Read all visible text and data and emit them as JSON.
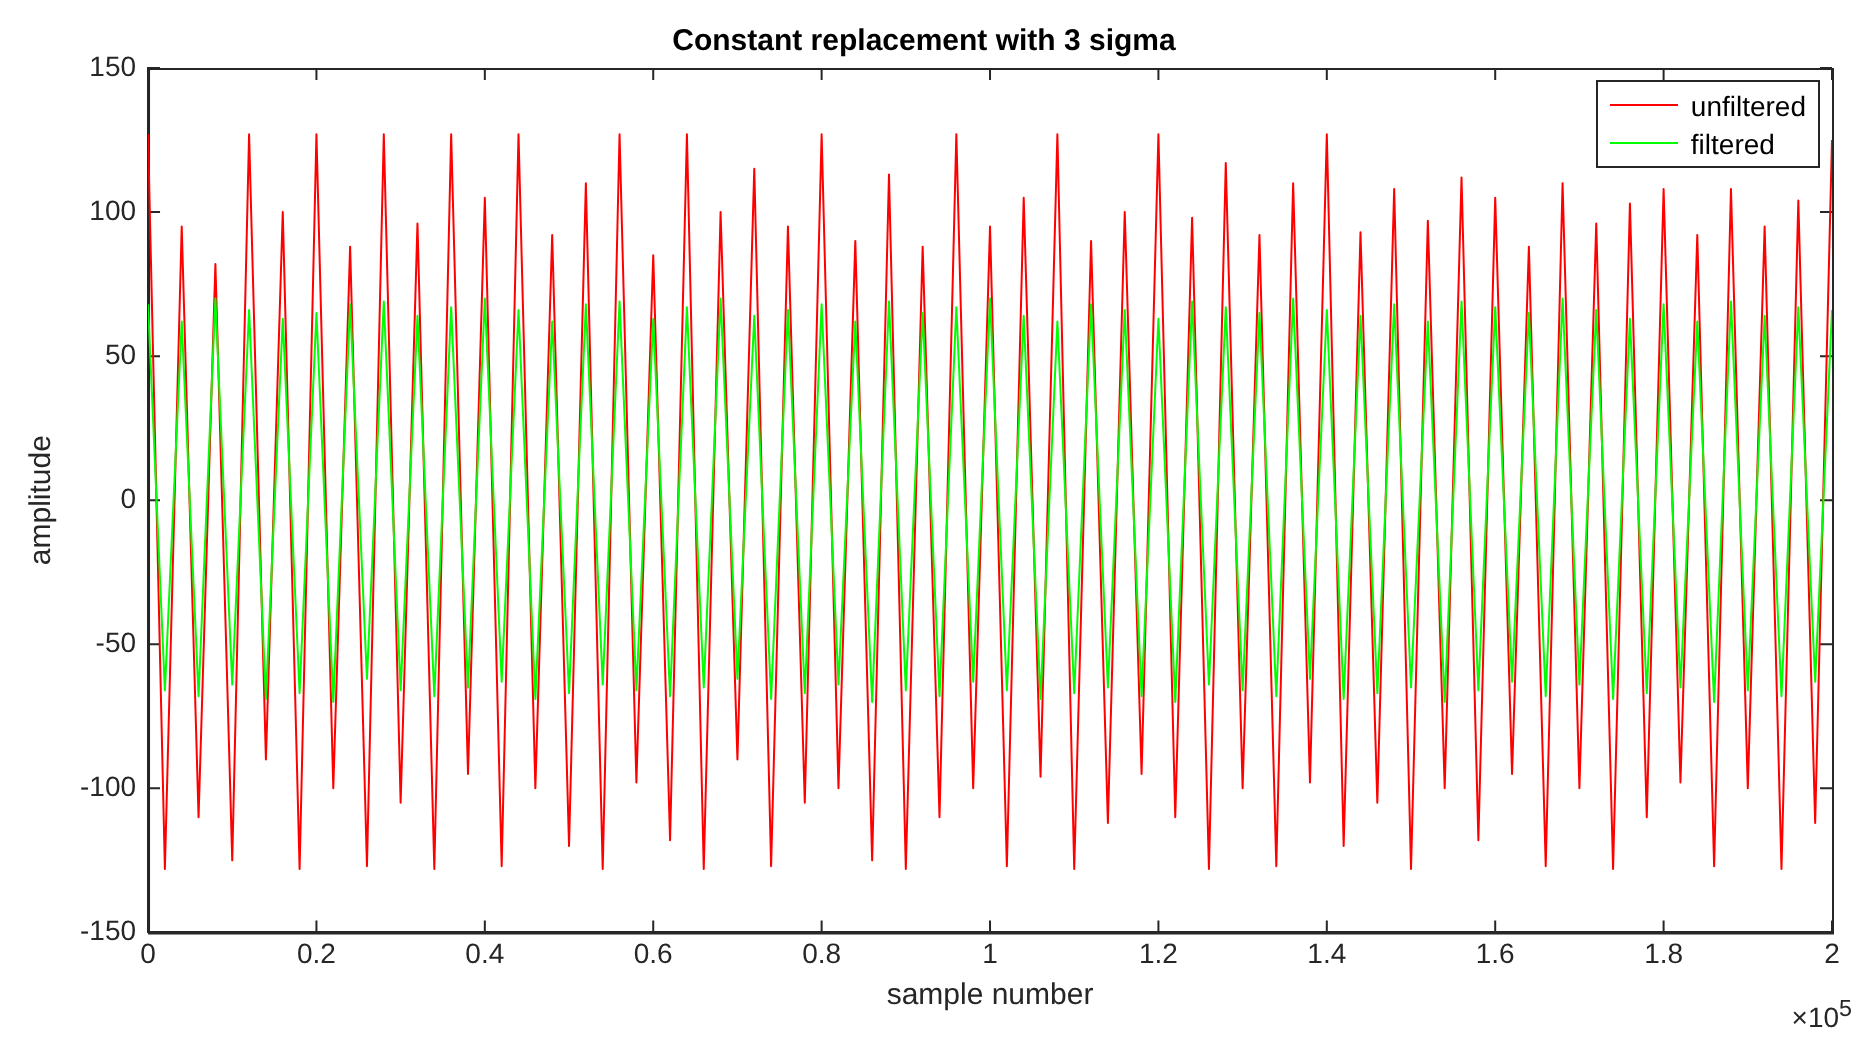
{
  "chart_data": {
    "type": "line",
    "title": "Constant replacement with 3 sigma",
    "xlabel": "sample number",
    "ylabel": "amplitude",
    "x": [
      0,
      0.02,
      0.04,
      0.06,
      0.08,
      0.1,
      0.12,
      0.14,
      0.16,
      0.18,
      0.2,
      0.22,
      0.24,
      0.26,
      0.28,
      0.3,
      0.32,
      0.34,
      0.36,
      0.38,
      0.4,
      0.42,
      0.44,
      0.46,
      0.48,
      0.5,
      0.52,
      0.54,
      0.56,
      0.58,
      0.6,
      0.62,
      0.64,
      0.66,
      0.68,
      0.7,
      0.72,
      0.74,
      0.76,
      0.78,
      0.8,
      0.82,
      0.84,
      0.86,
      0.88,
      0.9,
      0.92,
      0.94,
      0.96,
      0.98,
      1,
      1.02,
      1.04,
      1.06,
      1.08,
      1.1,
      1.12,
      1.14,
      1.16,
      1.18,
      1.2,
      1.22,
      1.24,
      1.26,
      1.28,
      1.3,
      1.32,
      1.34,
      1.36,
      1.38,
      1.4,
      1.42,
      1.44,
      1.46,
      1.48,
      1.5,
      1.52,
      1.54,
      1.56,
      1.58,
      1.6,
      1.62,
      1.64,
      1.66,
      1.68,
      1.7,
      1.72,
      1.74,
      1.76,
      1.78,
      1.8,
      1.82,
      1.84,
      1.86,
      1.88,
      1.9,
      1.92,
      1.94,
      1.96,
      1.98,
      2
    ],
    "series": [
      {
        "name": "unfiltered",
        "color": "#ff0000",
        "values": [
          127,
          -128,
          95,
          -110,
          82,
          -125,
          127,
          -90,
          100,
          -128,
          127,
          -100,
          88,
          -127,
          127,
          -105,
          96,
          -128,
          127,
          -95,
          105,
          -127,
          127,
          -100,
          92,
          -120,
          110,
          -128,
          127,
          -98,
          85,
          -118,
          127,
          -128,
          100,
          -90,
          115,
          -127,
          95,
          -105,
          127,
          -100,
          90,
          -125,
          113,
          -128,
          88,
          -110,
          127,
          -100,
          95,
          -127,
          105,
          -96,
          127,
          -128,
          90,
          -112,
          100,
          -95,
          127,
          -110,
          98,
          -128,
          117,
          -100,
          92,
          -127,
          110,
          -98,
          127,
          -120,
          93,
          -105,
          108,
          -128,
          97,
          -100,
          112,
          -118,
          105,
          -95,
          88,
          -127,
          110,
          -100,
          96,
          -128,
          103,
          -110,
          108,
          -98,
          92,
          -127,
          108,
          -100,
          95,
          -128,
          104,
          -112,
          125
        ]
      },
      {
        "name": "filtered",
        "color": "#00ff00",
        "values": [
          68,
          -66,
          62,
          -68,
          70,
          -64,
          66,
          -69,
          63,
          -67,
          65,
          -70,
          68,
          -62,
          69,
          -66,
          64,
          -68,
          67,
          -65,
          70,
          -63,
          66,
          -69,
          62,
          -67,
          68,
          -64,
          69,
          -66,
          63,
          -68,
          67,
          -65,
          70,
          -62,
          64,
          -69,
          66,
          -67,
          68,
          -64,
          62,
          -70,
          69,
          -66,
          65,
          -68,
          67,
          -63,
          70,
          -66,
          64,
          -69,
          62,
          -67,
          68,
          -65,
          66,
          -68,
          63,
          -70,
          69,
          -64,
          67,
          -66,
          65,
          -68,
          70,
          -62,
          66,
          -69,
          64,
          -67,
          68,
          -65,
          62,
          -70,
          69,
          -66,
          67,
          -63,
          65,
          -68,
          70,
          -64,
          66,
          -69,
          63,
          -67,
          68,
          -65,
          62,
          -70,
          69,
          -66,
          64,
          -68,
          67,
          -63,
          66
        ]
      }
    ],
    "xlim": [
      0,
      2
    ],
    "xticks": [
      0,
      0.2,
      0.4,
      0.6,
      0.8,
      1,
      1.2,
      1.4,
      1.6,
      1.8,
      2
    ],
    "ylim": [
      -150,
      150
    ],
    "yticks": [
      -150,
      -100,
      -50,
      0,
      50,
      100,
      150
    ],
    "annotations": [
      "×10$^{5}$"
    ],
    "legend": "top right",
    "grid": false,
    "marker": "none",
    "line_style": "solid"
  }
}
